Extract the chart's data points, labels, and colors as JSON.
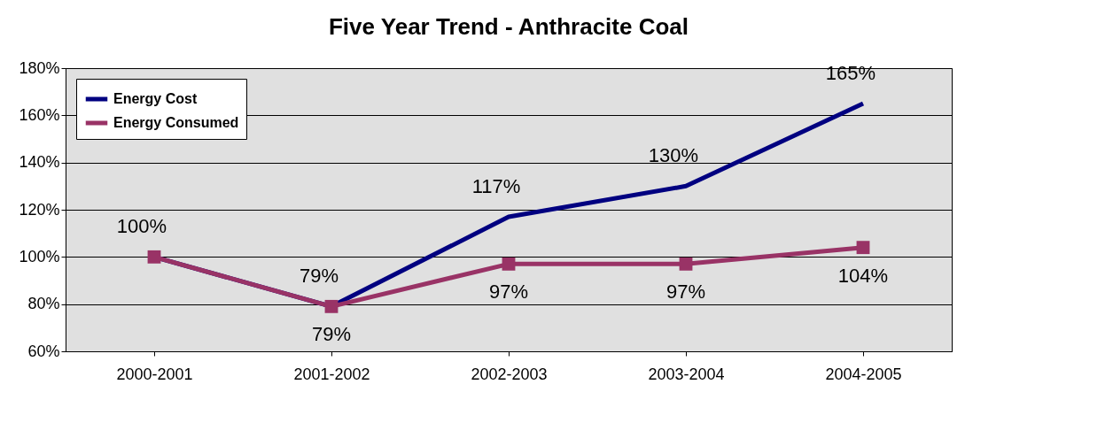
{
  "chart_data": {
    "type": "line",
    "title": "Five Year Trend - Anthracite Coal",
    "categories": [
      "2000-2001",
      "2001-2002",
      "2002-2003",
      "2003-2004",
      "2004-2005"
    ],
    "series": [
      {
        "name": "Energy Cost",
        "color": "#000080",
        "values": [
          100,
          79,
          117,
          130,
          165
        ],
        "marker": "none",
        "value_labels": [
          "100%",
          "79%",
          "117%",
          "130%",
          "165%"
        ]
      },
      {
        "name": "Energy Consumed",
        "color": "#993366",
        "values": [
          100,
          79,
          97,
          97,
          104
        ],
        "marker": "square",
        "value_labels": [
          null,
          "79%",
          "97%",
          "97%",
          "104%"
        ]
      }
    ],
    "ylim": [
      60,
      180
    ],
    "yticks": [
      {
        "value": 60,
        "label": "60%"
      },
      {
        "value": 80,
        "label": "80%"
      },
      {
        "value": 100,
        "label": "100%"
      },
      {
        "value": 120,
        "label": "120%"
      },
      {
        "value": 140,
        "label": "140%"
      },
      {
        "value": 160,
        "label": "160%"
      },
      {
        "value": 180,
        "label": "180%"
      }
    ],
    "grid": "y",
    "legend": "top left"
  }
}
